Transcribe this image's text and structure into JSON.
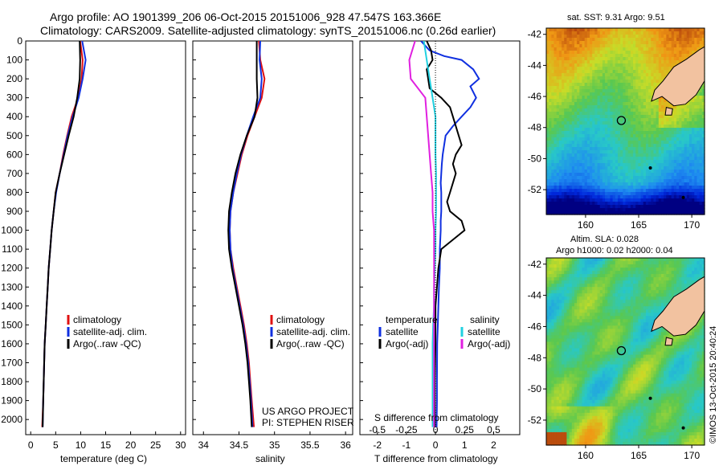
{
  "title": {
    "line1": "Argo profile: AO 1901399_206 06-Oct-2015 20151006_928 47.547S 163.366E",
    "line2": "Climatology: CARS2009. Satellite-adjusted climatology: synTS_20151006.nc (0.26d earlier)"
  },
  "colors": {
    "climatology": "#e01010",
    "satellite": "#1030e0",
    "argo": "#000000",
    "satellite_s": "#20d0e0",
    "argo_s": "#e020e0"
  },
  "depth_ticks": [
    "0",
    "100",
    "200",
    "300",
    "400",
    "500",
    "600",
    "700",
    "800",
    "900",
    "1000",
    "1100",
    "1200",
    "1300",
    "1400",
    "1500",
    "1600",
    "1700",
    "1800",
    "1900",
    "2000"
  ],
  "chart_data": [
    {
      "type": "line",
      "xlabel": "temperature (deg C)",
      "xlim": [
        -1,
        31
      ],
      "ylim": [
        0,
        2080
      ],
      "xticks": [
        "0",
        "5",
        "10",
        "15",
        "20",
        "25",
        "30"
      ],
      "xtick_values": [
        0,
        5,
        10,
        15,
        20,
        25,
        30
      ],
      "legend": [
        "climatology",
        "satellite-adj. clim.",
        "Argo(..raw -QC)"
      ],
      "series": [
        {
          "name": "climatology",
          "x": [
            9.9,
            10.4,
            10.2,
            9.5,
            8.2,
            7.3,
            6.5,
            5.8,
            5.0,
            4.6,
            4.2,
            3.9,
            3.6,
            3.4,
            3.2,
            3.0,
            2.8,
            2.7,
            2.6,
            2.5,
            2.3
          ],
          "y": [
            0,
            100,
            200,
            300,
            400,
            500,
            600,
            700,
            800,
            900,
            1000,
            1100,
            1200,
            1300,
            1400,
            1500,
            1600,
            1700,
            1800,
            1900,
            2040
          ]
        },
        {
          "name": "satellite-adj. clim.",
          "x": [
            10.3,
            11.0,
            10.4,
            9.6,
            8.4,
            7.4,
            6.6,
            5.8,
            5.1,
            4.6,
            4.2,
            3.9,
            3.6,
            3.4,
            3.2,
            3.0,
            2.8,
            2.7,
            2.6,
            2.5,
            2.4
          ],
          "y": [
            0,
            100,
            200,
            300,
            400,
            500,
            600,
            700,
            800,
            900,
            1000,
            1100,
            1200,
            1300,
            1400,
            1500,
            1600,
            1700,
            1800,
            1900,
            2040
          ]
        },
        {
          "name": "Argo(..raw -QC)",
          "x": [
            9.8,
            9.9,
            9.8,
            9.3,
            8.6,
            7.6,
            6.7,
            5.8,
            5.0,
            4.6,
            4.2,
            3.9,
            3.6,
            3.4,
            3.2,
            3.0,
            2.8,
            2.7,
            2.6,
            2.5,
            2.4
          ],
          "y": [
            0,
            100,
            200,
            300,
            400,
            500,
            600,
            700,
            800,
            900,
            1000,
            1100,
            1200,
            1300,
            1400,
            1500,
            1600,
            1700,
            1800,
            1900,
            2040
          ]
        }
      ]
    },
    {
      "type": "line",
      "xlabel": "salinity",
      "xlim": [
        33.85,
        36.1
      ],
      "ylim": [
        0,
        2080
      ],
      "xticks": [
        "34",
        "34.5",
        "35",
        "35.5",
        "36"
      ],
      "xtick_values": [
        34,
        34.5,
        35,
        35.5,
        36
      ],
      "legend": [
        "climatology",
        "satellite-adj. clim.",
        "Argo(..raw -QC)"
      ],
      "annotation": [
        "US ARGO PROJECT",
        "PI: STEPHEN RISER"
      ],
      "series": [
        {
          "name": "climatology",
          "x": [
            34.78,
            34.8,
            34.86,
            34.82,
            34.72,
            34.62,
            34.54,
            34.48,
            34.42,
            34.38,
            34.37,
            34.38,
            34.42,
            34.47,
            34.52,
            34.57,
            34.61,
            34.64,
            34.66,
            34.68,
            34.71
          ],
          "y": [
            0,
            100,
            200,
            300,
            400,
            500,
            600,
            700,
            800,
            900,
            1000,
            1100,
            1200,
            1300,
            1400,
            1500,
            1600,
            1700,
            1800,
            1900,
            2040
          ]
        },
        {
          "name": "satellite-adj. clim.",
          "x": [
            34.8,
            34.79,
            34.82,
            34.8,
            34.7,
            34.61,
            34.53,
            34.47,
            34.42,
            34.38,
            34.37,
            34.38,
            34.41,
            34.46,
            34.51,
            34.56,
            34.6,
            34.63,
            34.65,
            34.67,
            34.69
          ],
          "y": [
            0,
            100,
            200,
            300,
            400,
            500,
            600,
            700,
            800,
            900,
            1000,
            1100,
            1200,
            1300,
            1400,
            1500,
            1600,
            1700,
            1800,
            1900,
            2040
          ]
        },
        {
          "name": "Argo(..raw -QC)",
          "x": [
            34.75,
            34.75,
            34.75,
            34.76,
            34.72,
            34.61,
            34.52,
            34.45,
            34.4,
            34.36,
            34.35,
            34.36,
            34.4,
            34.45,
            34.5,
            34.55,
            34.59,
            34.62,
            34.64,
            34.66,
            34.68
          ],
          "y": [
            0,
            100,
            200,
            300,
            400,
            500,
            600,
            700,
            800,
            900,
            1000,
            1100,
            1200,
            1300,
            1400,
            1500,
            1600,
            1700,
            1800,
            1900,
            2040
          ]
        }
      ]
    },
    {
      "type": "line",
      "xlabel": "T difference from climatology",
      "xlabel_top": "S difference from climatology",
      "xlim": [
        -2.6,
        2.9
      ],
      "ylim": [
        0,
        2080
      ],
      "xticks": [
        "-2",
        "-1",
        "0",
        "1",
        "2"
      ],
      "xtick_values": [
        -2,
        -1,
        0,
        1,
        2
      ],
      "xticks_top": [
        "-0.5",
        "-0.25",
        "0",
        "0.25",
        "0.5"
      ],
      "xtick_top_values": [
        -2,
        -1,
        0,
        1,
        2
      ],
      "legend_left_title": "temperature",
      "legend_right_title": "salinity",
      "legend": [
        "satellite",
        "Argo(-adj)",
        "satellite",
        "Argo(-adj)"
      ],
      "series": [
        {
          "name": "satellite",
          "x": [
            -0.5,
            -0.2,
            0.3,
            0.9,
            1.3,
            1.5,
            1.2,
            1.4,
            1.2,
            0.9,
            0.6,
            0.35,
            0.25,
            0.22,
            0.2,
            0.18,
            0.2,
            0.2,
            0.2,
            0.18,
            0.18,
            0.15,
            0.15,
            0.12,
            0.1,
            0.08,
            0.06,
            0.05,
            0.05,
            0.04
          ],
          "y": [
            0,
            50,
            80,
            100,
            150,
            200,
            240,
            300,
            350,
            400,
            450,
            500,
            600,
            650,
            700,
            750,
            800,
            850,
            900,
            950,
            1000,
            1100,
            1200,
            1300,
            1400,
            1500,
            1600,
            1800,
            1900,
            2040
          ]
        },
        {
          "name": "Argo(-adj)",
          "x": [
            -0.3,
            -0.15,
            -0.1,
            -0.3,
            -0.2,
            0.2,
            0.5,
            0.6,
            0.7,
            0.8,
            0.9,
            0.7,
            0.6,
            0.7,
            0.6,
            0.5,
            0.4,
            0.5,
            0.9,
            1.0,
            0.6,
            0.2,
            0.1,
            0.05,
            0.0,
            0.0,
            0.0,
            -0.02,
            -0.02,
            -0.02
          ],
          "y": [
            0,
            50,
            100,
            150,
            250,
            300,
            350,
            400,
            450,
            500,
            550,
            600,
            650,
            700,
            750,
            800,
            850,
            900,
            950,
            1000,
            1050,
            1100,
            1200,
            1300,
            1400,
            1500,
            1600,
            1800,
            1900,
            2040
          ]
        },
        {
          "name": "satellite",
          "x": [
            -0.4,
            -0.3,
            -0.2,
            -0.1,
            0.0,
            0.0,
            0.0,
            0.02,
            0.02,
            0.02,
            0.0,
            0.0,
            -0.02,
            -0.05,
            -0.05,
            -0.08,
            -0.1,
            -0.1,
            -0.1,
            -0.1,
            -0.1,
            -0.1,
            -0.1,
            -0.1
          ],
          "y": [
            0,
            100,
            200,
            300,
            400,
            500,
            600,
            700,
            800,
            900,
            1000,
            1100,
            1200,
            1300,
            1400,
            1500,
            1600,
            1700,
            1800,
            1900,
            2000,
            2040,
            2040,
            2040
          ]
        },
        {
          "name": "Argo(-adj)",
          "x": [
            -0.7,
            -0.9,
            -0.85,
            -0.35,
            -0.3,
            -0.25,
            -0.2,
            -0.15,
            -0.1,
            -0.1,
            -0.05,
            -0.05,
            -0.05,
            -0.05,
            -0.05,
            -0.05,
            -0.05,
            -0.05,
            -0.05,
            -0.05,
            -0.05
          ],
          "y": [
            0,
            100,
            200,
            300,
            400,
            500,
            600,
            700,
            800,
            900,
            1000,
            1100,
            1200,
            1300,
            1400,
            1500,
            1600,
            1700,
            1800,
            1900,
            2040
          ]
        }
      ]
    },
    {
      "type": "heatmap",
      "title": "sat. SST: 9.31  Argo: 9.51",
      "xticks": [
        "160",
        "165",
        "170"
      ],
      "xtick_values": [
        160,
        165,
        170
      ],
      "yticks": [
        "-42",
        "-44",
        "-46",
        "-48",
        "-50",
        "-52"
      ],
      "ytick_values": [
        -42,
        -44,
        -46,
        -48,
        -50,
        -52
      ],
      "xlim": [
        156.3,
        171.2
      ],
      "ylim": [
        -53.6,
        -41.6
      ],
      "marker": {
        "lon": 163.366,
        "lat": -47.547
      }
    },
    {
      "type": "heatmap",
      "title_line1": "Altim. SLA: 0.028",
      "title_line2": "Argo h1000: 0.02  h2000: 0.04",
      "xticks": [
        "160",
        "165",
        "170"
      ],
      "xtick_values": [
        160,
        165,
        170
      ],
      "yticks": [
        "-42",
        "-44",
        "-46",
        "-48",
        "-50",
        "-52"
      ],
      "ytick_values": [
        -42,
        -44,
        -46,
        -48,
        -50,
        -52
      ],
      "xlim": [
        156.3,
        171.2
      ],
      "ylim": [
        -53.6,
        -41.6
      ],
      "marker": {
        "lon": 163.366,
        "lat": -47.547
      }
    }
  ],
  "credit": "©IMOS 13-Oct-2015 20:40:24"
}
